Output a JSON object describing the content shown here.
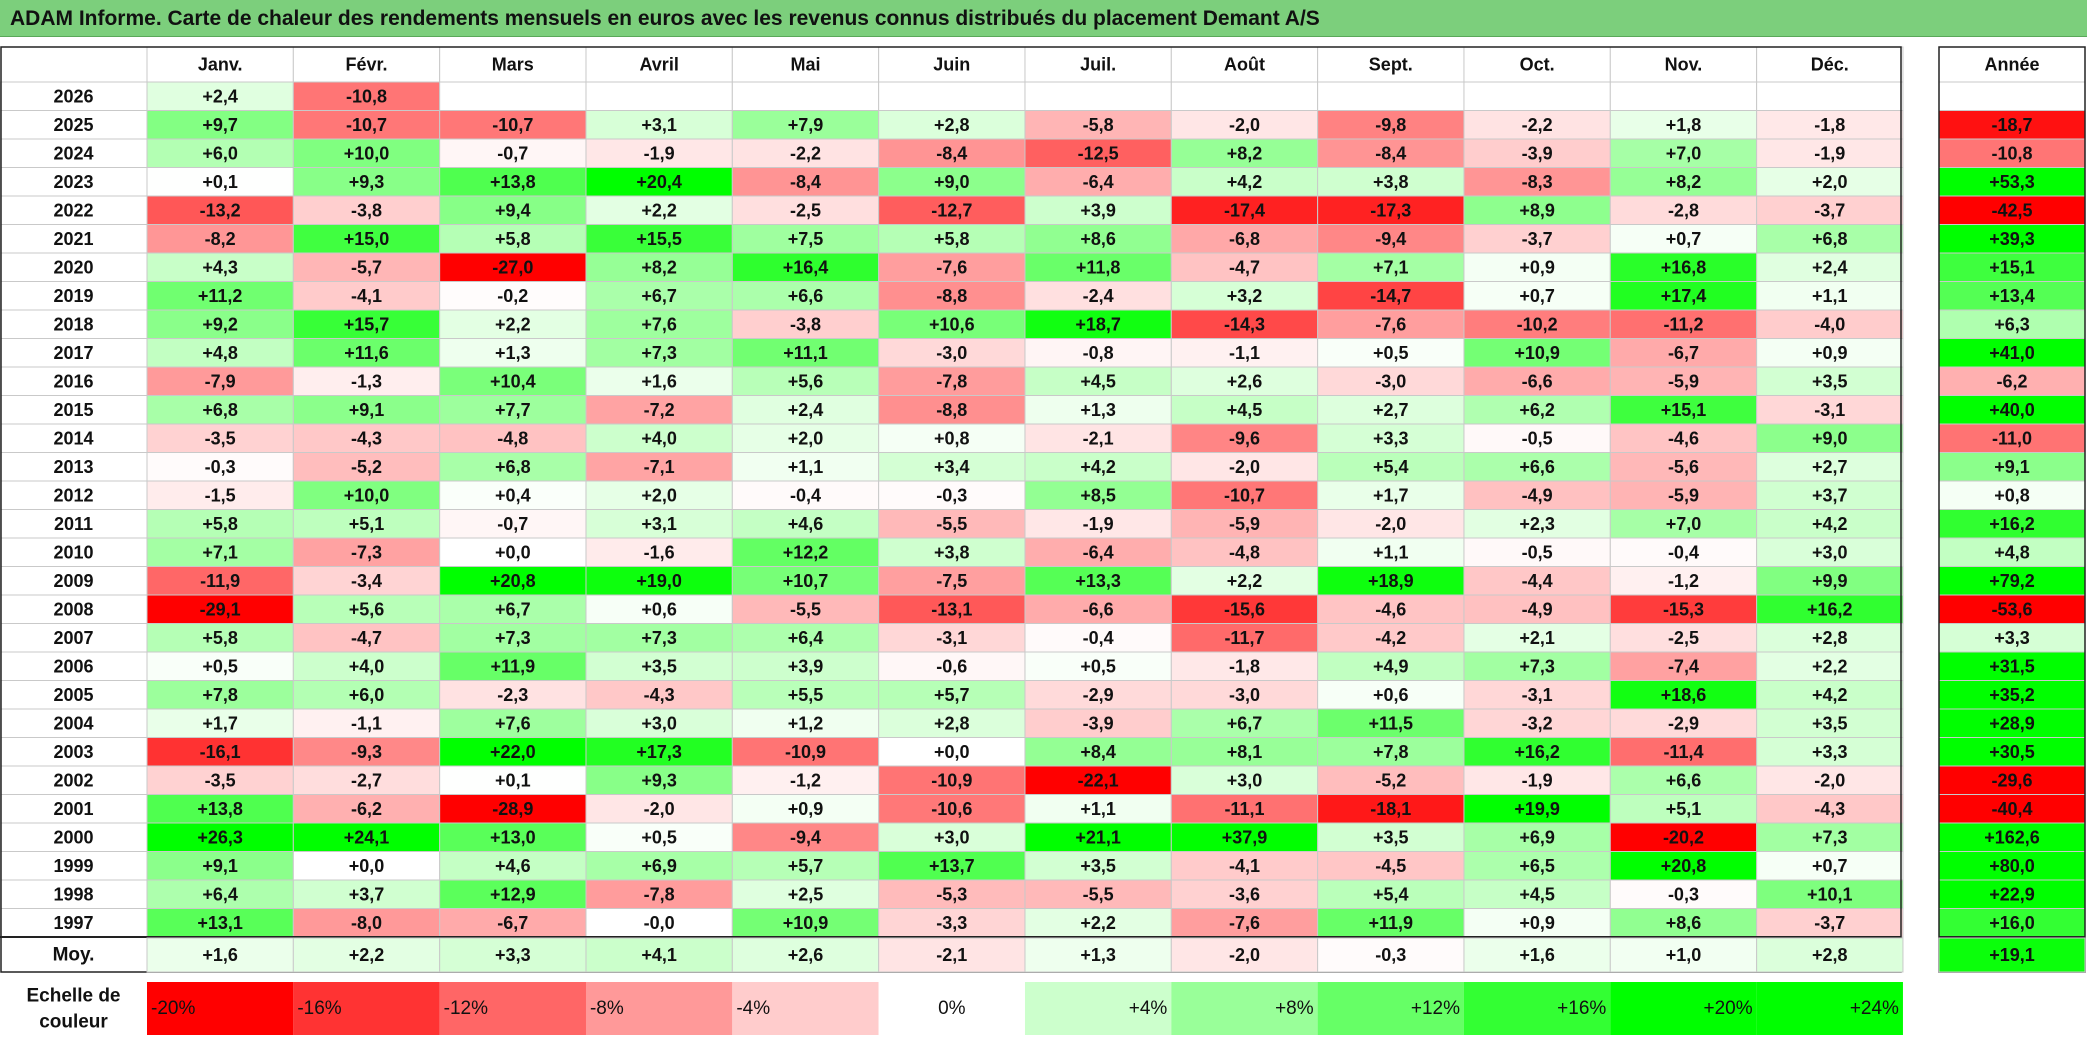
{
  "title": "ADAM Informe. Carte de chaleur des rendements mensuels en euros avec les revenus connus distribués du placement Demant A/S",
  "chart_data": {
    "type": "heatmap",
    "columns": [
      "Janv.",
      "Févr.",
      "Mars",
      "Avril",
      "Mai",
      "Juin",
      "Juil.",
      "Août",
      "Sept.",
      "Oct.",
      "Nov.",
      "Déc."
    ],
    "annual_header": "Année",
    "rows": [
      {
        "year": "2026",
        "values": [
          "+2,4",
          "-10,8",
          "",
          "",
          "",
          "",
          "",
          "",
          "",
          "",
          "",
          ""
        ],
        "annual": ""
      },
      {
        "year": "2025",
        "values": [
          "+9,7",
          "-10,7",
          "-10,7",
          "+3,1",
          "+7,9",
          "+2,8",
          "-5,8",
          "-2,0",
          "-9,8",
          "-2,2",
          "+1,8",
          "-1,8"
        ],
        "annual": "-18,7"
      },
      {
        "year": "2024",
        "values": [
          "+6,0",
          "+10,0",
          "-0,7",
          "-1,9",
          "-2,2",
          "-8,4",
          "-12,5",
          "+8,2",
          "-8,4",
          "-3,9",
          "+7,0",
          "-1,9"
        ],
        "annual": "-10,8"
      },
      {
        "year": "2023",
        "values": [
          "+0,1",
          "+9,3",
          "+13,8",
          "+20,4",
          "-8,4",
          "+9,0",
          "-6,4",
          "+4,2",
          "+3,8",
          "-8,3",
          "+8,2",
          "+2,0"
        ],
        "annual": "+53,3"
      },
      {
        "year": "2022",
        "values": [
          "-13,2",
          "-3,8",
          "+9,4",
          "+2,2",
          "-2,5",
          "-12,7",
          "+3,9",
          "-17,4",
          "-17,3",
          "+8,9",
          "-2,8",
          "-3,7"
        ],
        "annual": "-42,5"
      },
      {
        "year": "2021",
        "values": [
          "-8,2",
          "+15,0",
          "+5,8",
          "+15,5",
          "+7,5",
          "+5,8",
          "+8,6",
          "-6,8",
          "-9,4",
          "-3,7",
          "+0,7",
          "+6,8"
        ],
        "annual": "+39,3"
      },
      {
        "year": "2020",
        "values": [
          "+4,3",
          "-5,7",
          "-27,0",
          "+8,2",
          "+16,4",
          "-7,6",
          "+11,8",
          "-4,7",
          "+7,1",
          "+0,9",
          "+16,8",
          "+2,4"
        ],
        "annual": "+15,1"
      },
      {
        "year": "2019",
        "values": [
          "+11,2",
          "-4,1",
          "-0,2",
          "+6,7",
          "+6,6",
          "-8,8",
          "-2,4",
          "+3,2",
          "-14,7",
          "+0,7",
          "+17,4",
          "+1,1"
        ],
        "annual": "+13,4"
      },
      {
        "year": "2018",
        "values": [
          "+9,2",
          "+15,7",
          "+2,2",
          "+7,6",
          "-3,8",
          "+10,6",
          "+18,7",
          "-14,3",
          "-7,6",
          "-10,2",
          "-11,2",
          "-4,0"
        ],
        "annual": "+6,3"
      },
      {
        "year": "2017",
        "values": [
          "+4,8",
          "+11,6",
          "+1,3",
          "+7,3",
          "+11,1",
          "-3,0",
          "-0,8",
          "-1,1",
          "+0,5",
          "+10,9",
          "-6,7",
          "+0,9"
        ],
        "annual": "+41,0"
      },
      {
        "year": "2016",
        "values": [
          "-7,9",
          "-1,3",
          "+10,4",
          "+1,6",
          "+5,6",
          "-7,8",
          "+4,5",
          "+2,6",
          "-3,0",
          "-6,6",
          "-5,9",
          "+3,5"
        ],
        "annual": "-6,2"
      },
      {
        "year": "2015",
        "values": [
          "+6,8",
          "+9,1",
          "+7,7",
          "-7,2",
          "+2,4",
          "-8,8",
          "+1,3",
          "+4,5",
          "+2,7",
          "+6,2",
          "+15,1",
          "-3,1"
        ],
        "annual": "+40,0"
      },
      {
        "year": "2014",
        "values": [
          "-3,5",
          "-4,3",
          "-4,8",
          "+4,0",
          "+2,0",
          "+0,8",
          "-2,1",
          "-9,6",
          "+3,3",
          "-0,5",
          "-4,6",
          "+9,0"
        ],
        "annual": "-11,0"
      },
      {
        "year": "2013",
        "values": [
          "-0,3",
          "-5,2",
          "+6,8",
          "-7,1",
          "+1,1",
          "+3,4",
          "+4,2",
          "-2,0",
          "+5,4",
          "+6,6",
          "-5,6",
          "+2,7"
        ],
        "annual": "+9,1"
      },
      {
        "year": "2012",
        "values": [
          "-1,5",
          "+10,0",
          "+0,4",
          "+2,0",
          "-0,4",
          "-0,3",
          "+8,5",
          "-10,7",
          "+1,7",
          "-4,9",
          "-5,9",
          "+3,7"
        ],
        "annual": "+0,8"
      },
      {
        "year": "2011",
        "values": [
          "+5,8",
          "+5,1",
          "-0,7",
          "+3,1",
          "+4,6",
          "-5,5",
          "-1,9",
          "-5,9",
          "-2,0",
          "+2,3",
          "+7,0",
          "+4,2"
        ],
        "annual": "+16,2"
      },
      {
        "year": "2010",
        "values": [
          "+7,1",
          "-7,3",
          "+0,0",
          "-1,6",
          "+12,2",
          "+3,8",
          "-6,4",
          "-4,8",
          "+1,1",
          "-0,5",
          "-0,4",
          "+3,0"
        ],
        "annual": "+4,8"
      },
      {
        "year": "2009",
        "values": [
          "-11,9",
          "-3,4",
          "+20,8",
          "+19,0",
          "+10,7",
          "-7,5",
          "+13,3",
          "+2,2",
          "+18,9",
          "-4,4",
          "-1,2",
          "+9,9"
        ],
        "annual": "+79,2"
      },
      {
        "year": "2008",
        "values": [
          "-29,1",
          "+5,6",
          "+6,7",
          "+0,6",
          "-5,5",
          "-13,1",
          "-6,6",
          "-15,6",
          "-4,6",
          "-4,9",
          "-15,3",
          "+16,2"
        ],
        "annual": "-53,6"
      },
      {
        "year": "2007",
        "values": [
          "+5,8",
          "-4,7",
          "+7,3",
          "+7,3",
          "+6,4",
          "-3,1",
          "-0,4",
          "-11,7",
          "-4,2",
          "+2,1",
          "-2,5",
          "+2,8"
        ],
        "annual": "+3,3"
      },
      {
        "year": "2006",
        "values": [
          "+0,5",
          "+4,0",
          "+11,9",
          "+3,5",
          "+3,9",
          "-0,6",
          "+0,5",
          "-1,8",
          "+4,9",
          "+7,3",
          "-7,4",
          "+2,2"
        ],
        "annual": "+31,5"
      },
      {
        "year": "2005",
        "values": [
          "+7,8",
          "+6,0",
          "-2,3",
          "-4,3",
          "+5,5",
          "+5,7",
          "-2,9",
          "-3,0",
          "+0,6",
          "-3,1",
          "+18,6",
          "+4,2"
        ],
        "annual": "+35,2"
      },
      {
        "year": "2004",
        "values": [
          "+1,7",
          "-1,1",
          "+7,6",
          "+3,0",
          "+1,2",
          "+2,8",
          "-3,9",
          "+6,7",
          "+11,5",
          "-3,2",
          "-2,9",
          "+3,5"
        ],
        "annual": "+28,9"
      },
      {
        "year": "2003",
        "values": [
          "-16,1",
          "-9,3",
          "+22,0",
          "+17,3",
          "-10,9",
          "+0,0",
          "+8,4",
          "+8,1",
          "+7,8",
          "+16,2",
          "-11,4",
          "+3,3"
        ],
        "annual": "+30,5"
      },
      {
        "year": "2002",
        "values": [
          "-3,5",
          "-2,7",
          "+0,1",
          "+9,3",
          "-1,2",
          "-10,9",
          "-22,1",
          "+3,0",
          "-5,2",
          "-1,9",
          "+6,6",
          "-2,0"
        ],
        "annual": "-29,6"
      },
      {
        "year": "2001",
        "values": [
          "+13,8",
          "-6,2",
          "-28,9",
          "-2,0",
          "+0,9",
          "-10,6",
          "+1,1",
          "-11,1",
          "-18,1",
          "+19,9",
          "+5,1",
          "-4,3"
        ],
        "annual": "-40,4"
      },
      {
        "year": "2000",
        "values": [
          "+26,3",
          "+24,1",
          "+13,0",
          "+0,5",
          "-9,4",
          "+3,0",
          "+21,1",
          "+37,9",
          "+3,5",
          "+6,9",
          "-20,2",
          "+7,3"
        ],
        "annual": "+162,6"
      },
      {
        "year": "1999",
        "values": [
          "+9,1",
          "+0,0",
          "+4,6",
          "+6,9",
          "+5,7",
          "+13,7",
          "+3,5",
          "-4,1",
          "-4,5",
          "+6,5",
          "+20,8",
          "+0,7"
        ],
        "annual": "+80,0"
      },
      {
        "year": "1998",
        "values": [
          "+6,4",
          "+3,7",
          "+12,9",
          "-7,8",
          "+2,5",
          "-5,3",
          "-5,5",
          "-3,6",
          "+5,4",
          "+4,5",
          "-0,3",
          "+10,1"
        ],
        "annual": "+22,9"
      },
      {
        "year": "1997",
        "values": [
          "+13,1",
          "-8,0",
          "-6,7",
          "-0,0",
          "+10,9",
          "-3,3",
          "+2,2",
          "-7,6",
          "+11,9",
          "+0,9",
          "+8,6",
          "-3,7"
        ],
        "annual": "+16,0"
      }
    ],
    "average": {
      "label": "Moy.",
      "values": [
        "+1,6",
        "+2,2",
        "+3,3",
        "+4,1",
        "+2,6",
        "-2,1",
        "+1,3",
        "-2,0",
        "-0,3",
        "+1,6",
        "+1,0",
        "+2,8"
      ],
      "annual": "+19,1"
    },
    "scale": {
      "label_line1": "Echelle de",
      "label_line2": "couleur",
      "steps": [
        {
          "label": "-20%",
          "value": -20
        },
        {
          "label": "-16%",
          "value": -16
        },
        {
          "label": "-12%",
          "value": -12
        },
        {
          "label": "-8%",
          "value": -8
        },
        {
          "label": "-4%",
          "value": -4
        },
        {
          "label": "0%",
          "value": 0
        },
        {
          "label": "+4%",
          "value": 4
        },
        {
          "label": "+8%",
          "value": 8
        },
        {
          "label": "+12%",
          "value": 12
        },
        {
          "label": "+16%",
          "value": 16
        },
        {
          "label": "+20%",
          "value": 20
        },
        {
          "label": "+24%",
          "value": 24
        }
      ]
    },
    "colors": {
      "negative_max": "#ff0000",
      "positive_max": "#00ff00",
      "neutral": "#ffffff",
      "title_bar": "#7ccf7c"
    }
  }
}
